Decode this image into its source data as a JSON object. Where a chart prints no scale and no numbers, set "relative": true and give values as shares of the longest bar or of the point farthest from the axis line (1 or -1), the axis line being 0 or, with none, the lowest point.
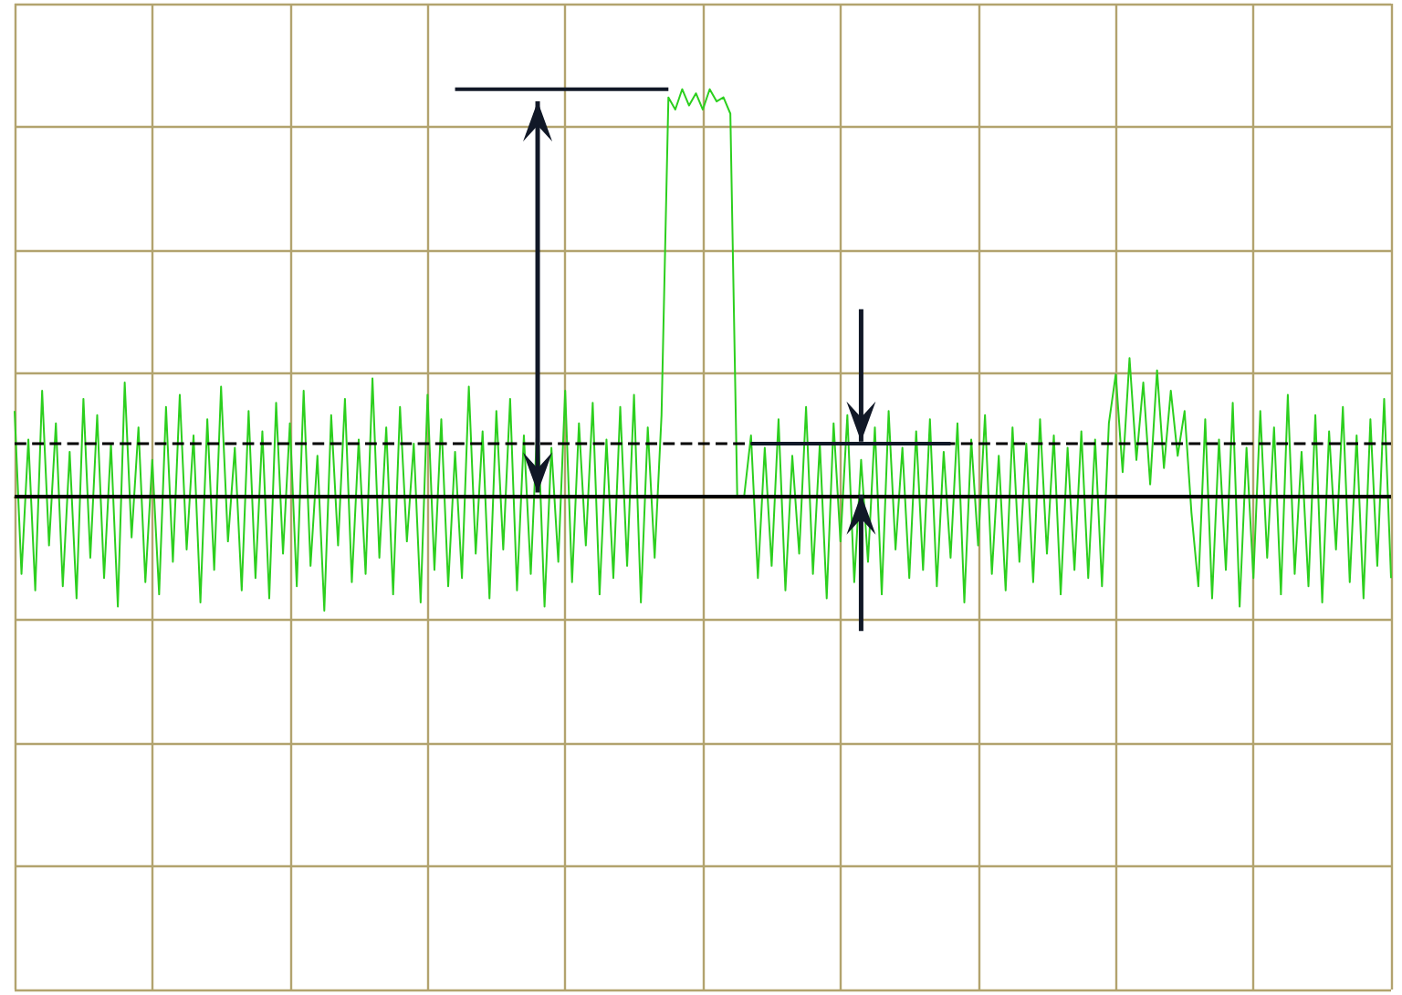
{
  "chart_data": {
    "type": "line",
    "relative": true,
    "grid": true,
    "marker": "none",
    "line_style": "solid",
    "color": "#2ccf1e",
    "categories": [
      null,
      null,
      null,
      null,
      null,
      null,
      null,
      null,
      null,
      null,
      null,
      null,
      null,
      null,
      null,
      null,
      null,
      null,
      null,
      null,
      null,
      null,
      null,
      null,
      null,
      null,
      null,
      null,
      null,
      null,
      null,
      null,
      null,
      null,
      null,
      null,
      null,
      null,
      null,
      null,
      null,
      null,
      null,
      null,
      null,
      null,
      null,
      null,
      null,
      null,
      null,
      null,
      null,
      null,
      null,
      null,
      null,
      null,
      null,
      null,
      null,
      null,
      null,
      null,
      null,
      null,
      null,
      null,
      null,
      null,
      null,
      null,
      null,
      null,
      null,
      null,
      null,
      null,
      null,
      null,
      null,
      null,
      null,
      null,
      null,
      null,
      null,
      null,
      null,
      null,
      null,
      null,
      null,
      null,
      null,
      null,
      null,
      null,
      null,
      null,
      null,
      null,
      null,
      null,
      null,
      null,
      null,
      null,
      null,
      null,
      null,
      null,
      null,
      null,
      null,
      null,
      null,
      null,
      null,
      null,
      null,
      null,
      null,
      null,
      null,
      null,
      null,
      null,
      null,
      null,
      null,
      null,
      null,
      null,
      null,
      null,
      null,
      null,
      null,
      null,
      null,
      null,
      null,
      null,
      null,
      null,
      null,
      null,
      null,
      null,
      null,
      null,
      null,
      null,
      null,
      null,
      null,
      null,
      null,
      null,
      null,
      null,
      null,
      null,
      null,
      null,
      null,
      null,
      null,
      null,
      null,
      null,
      null,
      null,
      null,
      null,
      null,
      null,
      null,
      null,
      null,
      null,
      null,
      null,
      null,
      null,
      null,
      null,
      null,
      null,
      null,
      null,
      null,
      null,
      null,
      null,
      null,
      null,
      null,
      null,
      null
    ],
    "values": [
      0.21,
      -0.19,
      0.14,
      -0.23,
      0.26,
      -0.12,
      0.18,
      -0.22,
      0.11,
      -0.25,
      0.24,
      -0.15,
      0.2,
      -0.2,
      0.13,
      -0.27,
      0.28,
      -0.1,
      0.17,
      -0.21,
      0.09,
      -0.24,
      0.22,
      -0.16,
      0.25,
      -0.13,
      0.15,
      -0.26,
      0.19,
      -0.18,
      0.27,
      -0.11,
      0.12,
      -0.23,
      0.21,
      -0.2,
      0.16,
      -0.25,
      0.23,
      -0.14,
      0.18,
      -0.22,
      0.26,
      -0.17,
      0.1,
      -0.28,
      0.2,
      -0.12,
      0.24,
      -0.21,
      0.14,
      -0.19,
      0.29,
      -0.15,
      0.17,
      -0.24,
      0.22,
      -0.11,
      0.13,
      -0.26,
      0.25,
      -0.18,
      0.19,
      -0.22,
      0.11,
      -0.2,
      0.27,
      -0.14,
      0.16,
      -0.25,
      0.21,
      -0.13,
      0.24,
      -0.23,
      0.15,
      -0.19,
      0.2,
      -0.27,
      0.12,
      -0.16,
      0.26,
      -0.21,
      0.18,
      -0.12,
      0.23,
      -0.24,
      0.14,
      -0.2,
      0.22,
      -0.17,
      0.25,
      -0.26,
      0.17,
      -0.15,
      0.2,
      0.98,
      0.95,
      1,
      0.96,
      0.99,
      0.95,
      1,
      0.97,
      0.98,
      0.94,
      0,
      0,
      0.15,
      -0.2,
      0.12,
      -0.17,
      0.19,
      -0.23,
      0.1,
      -0.14,
      0.22,
      -0.19,
      0.13,
      -0.25,
      0.18,
      -0.11,
      0.2,
      -0.21,
      0.09,
      -0.16,
      0.17,
      -0.24,
      0.21,
      -0.13,
      0.12,
      -0.2,
      0.16,
      -0.18,
      0.19,
      -0.22,
      0.11,
      -0.15,
      0.18,
      -0.26,
      0.14,
      -0.12,
      0.2,
      -0.19,
      0.1,
      -0.23,
      0.17,
      -0.16,
      0.13,
      -0.21,
      0.19,
      -0.14,
      0.15,
      -0.24,
      0.12,
      -0.18,
      0.16,
      -0.2,
      0.14,
      -0.22,
      0.18,
      0.3,
      0.06,
      0.34,
      0.09,
      0.28,
      0.03,
      0.31,
      0.07,
      0.26,
      0.1,
      0.21,
      -0.04,
      -0.22,
      0.19,
      -0.25,
      0.14,
      -0.18,
      0.23,
      -0.27,
      0.12,
      -0.2,
      0.21,
      -0.15,
      0.17,
      -0.24,
      0.25,
      -0.19,
      0.11,
      -0.22,
      0.2,
      -0.26,
      0.16,
      -0.13,
      0.22,
      -0.21,
      0.15,
      -0.25,
      0.19,
      -0.17,
      0.24,
      -0.2
    ],
    "ref_lines": [
      {
        "axis": "y",
        "value": 0,
        "color": "#000000",
        "line_style": "solid"
      },
      {
        "axis": "y",
        "value": 0.13,
        "color": "#000000",
        "line_style": "dashed"
      }
    ]
  }
}
